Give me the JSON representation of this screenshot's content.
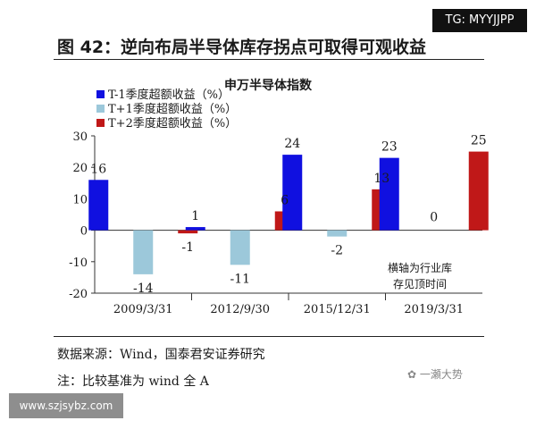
{
  "watermark_top": "TG: MYYJJPP",
  "figure_title": "图 42：逆向布局半导体库存拐点可取得可观收益",
  "chart_data": {
    "type": "bar",
    "title": "申万半导体指数",
    "categories": [
      "2009/3/31",
      "2012/9/30",
      "2015/12/31",
      "2019/3/31"
    ],
    "series": [
      {
        "name": "T-1季度超额收益（%）",
        "color": "#1010e0",
        "values": [
          16,
          1,
          24,
          23
        ]
      },
      {
        "name": "T+1季度超额收益（%）",
        "color": "#9cc8da",
        "values": [
          -14,
          -11,
          -2,
          0
        ]
      },
      {
        "name": "T+2季度超额收益（%）",
        "color": "#c01818",
        "values": [
          -1,
          6,
          13,
          25
        ]
      }
    ],
    "data_labels": [
      [
        "16",
        "-14",
        "-1"
      ],
      [
        "1",
        "-11",
        "6"
      ],
      [
        "24",
        "-2",
        "13"
      ],
      [
        "23",
        "0",
        "25"
      ]
    ],
    "ylim": [
      -20,
      30
    ],
    "yticks": [
      "30",
      "20",
      "10",
      "0",
      "-10",
      "-20"
    ],
    "xlabel": "",
    "ylabel": "",
    "legend_position": "top-left",
    "annotation": [
      "横轴为行业库",
      "存见顶时间"
    ]
  },
  "source_text": "数据来源：Wind，国泰君安证券研究",
  "note_text": "注：比较基准为 wind 全 A",
  "wechat_text": "一瀬大势",
  "watermark_bottom": "www.szjsybz.com"
}
